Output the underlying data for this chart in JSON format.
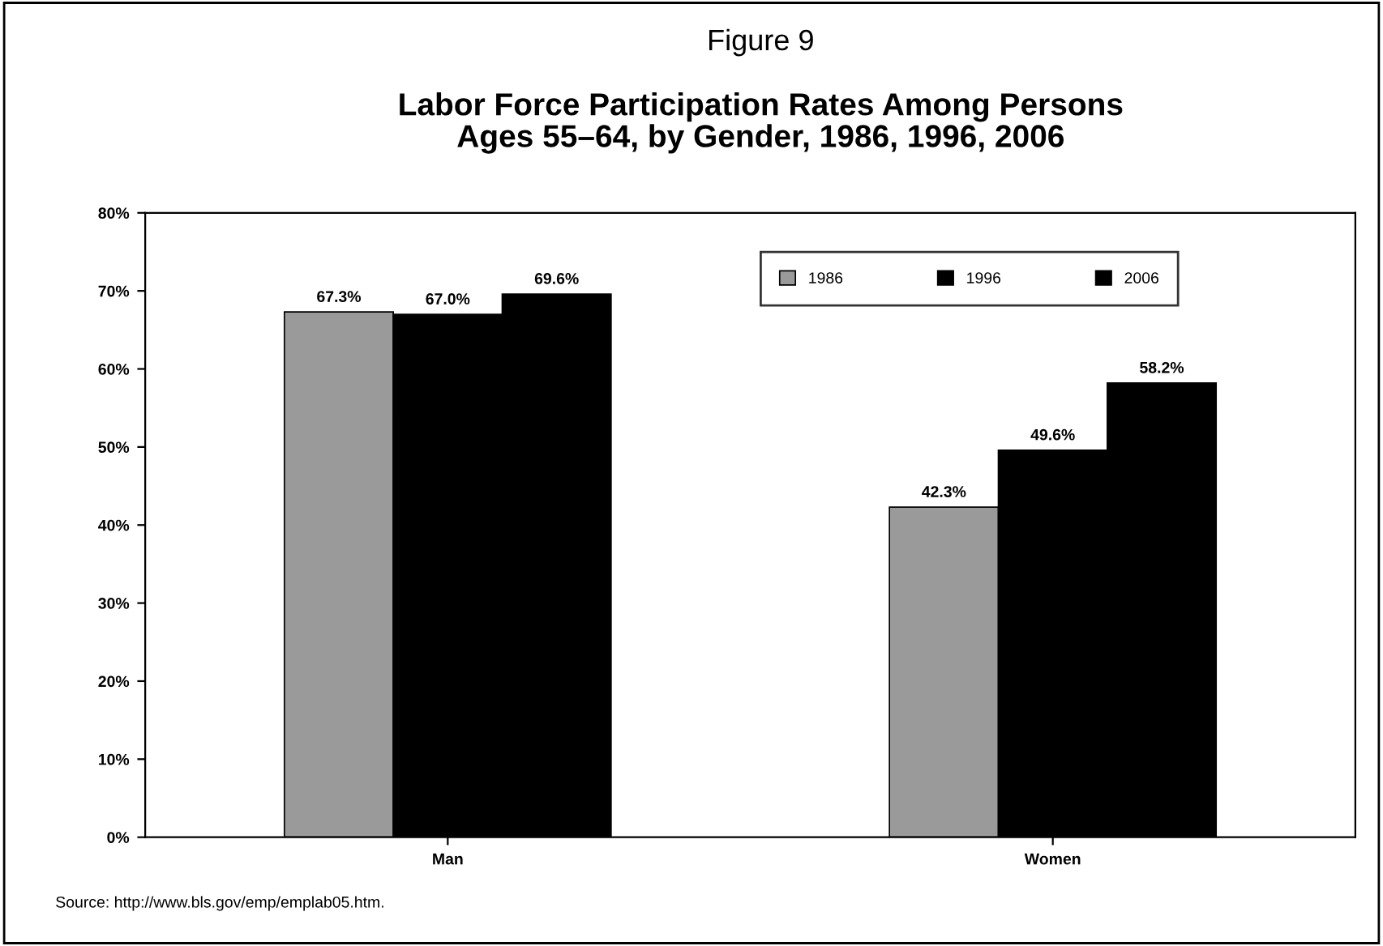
{
  "chart_data": {
    "type": "bar",
    "title": "Figure 9",
    "subtitle": "Labor Force Participation Rates Among Persons\nAges 55–64, by Gender, 1986, 1996, 2006",
    "categories": [
      "Man",
      "Women"
    ],
    "series": [
      {
        "name": "1986",
        "color": "#9a9a9a",
        "values": [
          67.3,
          42.3
        ],
        "value_labels": [
          "67.3%",
          "42.3%"
        ]
      },
      {
        "name": "1996",
        "color": "#000000",
        "values": [
          67.0,
          49.6
        ],
        "value_labels": [
          "67.0%",
          "49.6%"
        ]
      },
      {
        "name": "2006",
        "color": "#000000",
        "values": [
          69.6,
          58.2
        ],
        "value_labels": [
          "69.6%",
          "58.2%"
        ]
      }
    ],
    "ylim": [
      0,
      80
    ],
    "yticks": [
      {
        "value": 0,
        "label": "0%"
      },
      {
        "value": 10,
        "label": "10%"
      },
      {
        "value": 20,
        "label": "20%"
      },
      {
        "value": 30,
        "label": "30%"
      },
      {
        "value": 40,
        "label": "40%"
      },
      {
        "value": 50,
        "label": "50%"
      },
      {
        "value": 60,
        "label": "60%"
      },
      {
        "value": 70,
        "label": "70%"
      },
      {
        "value": 80,
        "label": "80%"
      }
    ],
    "grid": false,
    "legend": "top right",
    "annotations": [
      "Source: http://www.bls.gov/emp/emplab05.htm."
    ]
  }
}
